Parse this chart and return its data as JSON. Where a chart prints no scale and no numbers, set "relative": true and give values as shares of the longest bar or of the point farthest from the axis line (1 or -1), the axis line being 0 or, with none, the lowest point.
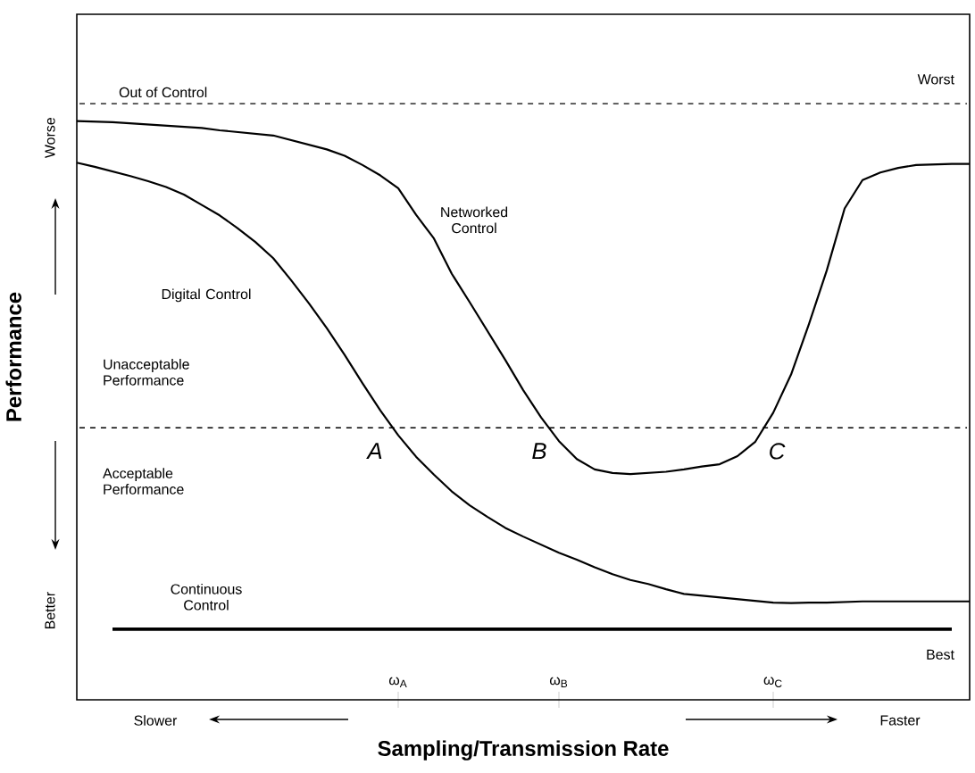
{
  "chart_data": {
    "type": "line",
    "relative": true,
    "xlabel": "Sampling/Transmission Rate",
    "ylabel": "Performance",
    "categories": [
      null,
      null,
      null,
      null,
      null,
      null,
      null,
      null,
      null,
      null,
      null,
      null,
      null,
      null,
      null,
      null,
      null,
      null,
      "ω$_{A}$",
      null,
      null,
      null,
      null,
      null,
      null,
      null,
      null,
      "ω$_{B}$",
      null,
      null,
      null,
      null,
      null,
      null,
      null,
      null,
      null,
      null,
      null,
      "ω$_{C}$",
      null,
      null,
      null,
      null,
      null,
      null,
      null,
      null,
      null,
      null,
      null
    ],
    "tick_labels": "x",
    "marker": "none",
    "line_style": "solid",
    "series": [
      {
        "name": "Networked Control",
        "color": "#000000",
        "values": [
          1.0,
          0.999,
          0.998,
          0.996,
          0.994,
          0.992,
          0.99,
          0.988,
          0.984,
          0.981,
          0.978,
          0.975,
          0.967,
          0.959,
          0.951,
          0.94,
          0.924,
          0.906,
          0.884,
          0.838,
          0.797,
          0.736,
          0.687,
          0.637,
          0.587,
          0.535,
          0.488,
          0.447,
          0.416,
          0.398,
          0.392,
          0.39,
          0.392,
          0.394,
          0.398,
          0.403,
          0.407,
          0.421,
          0.446,
          0.496,
          0.562,
          0.649,
          0.742,
          0.849,
          0.898,
          0.911,
          0.919,
          0.924,
          0.925,
          0.926,
          0.926
        ]
      },
      {
        "name": "Digital Control",
        "color": "#000000",
        "values": [
          0.928,
          0.921,
          0.913,
          0.905,
          0.896,
          0.886,
          0.873,
          0.855,
          0.837,
          0.815,
          0.791,
          0.763,
          0.725,
          0.685,
          0.642,
          0.596,
          0.547,
          0.5,
          0.457,
          0.42,
          0.389,
          0.36,
          0.336,
          0.316,
          0.297,
          0.282,
          0.268,
          0.254,
          0.242,
          0.229,
          0.217,
          0.207,
          0.2,
          0.191,
          0.183,
          0.18,
          0.177,
          0.174,
          0.171,
          0.168,
          0.167,
          0.168,
          0.168,
          0.169,
          0.17,
          0.17,
          0.17,
          0.17,
          0.17,
          0.17,
          0.17
        ]
      },
      {
        "name": "Continuous Control",
        "color": "#000000",
        "values": [
          null,
          null,
          0.122,
          0.122,
          0.122,
          0.122,
          0.122,
          0.122,
          0.122,
          0.122,
          0.122,
          0.122,
          0.122,
          0.122,
          0.122,
          0.122,
          0.122,
          0.122,
          0.122,
          0.122,
          0.122,
          0.122,
          0.122,
          0.122,
          0.122,
          0.122,
          0.122,
          0.122,
          0.122,
          0.122,
          0.122,
          0.122,
          0.122,
          0.122,
          0.122,
          0.122,
          0.122,
          0.122,
          0.122,
          0.122,
          0.122,
          0.122,
          0.122,
          0.122,
          0.122,
          0.122,
          0.122,
          0.122,
          0.122,
          0.122,
          null
        ]
      }
    ],
    "ref_lines": [
      {
        "axis": "y",
        "value": 1.03,
        "label": "Out of Control",
        "line_style": "dashed",
        "color": "#000000"
      },
      {
        "axis": "y",
        "value": 0.47,
        "line_style": "dashed",
        "color": "#000000"
      }
    ],
    "annotations": [
      "Unacceptable Performance",
      "Acceptable Performance",
      "Worst",
      "Best",
      "Worse",
      "Better",
      "Slower",
      "Faster",
      {
        "text": "A",
        "y": 0.47
      },
      {
        "text": "B",
        "y": 0.47
      },
      {
        "text": "C",
        "y": 0.47
      }
    ]
  }
}
